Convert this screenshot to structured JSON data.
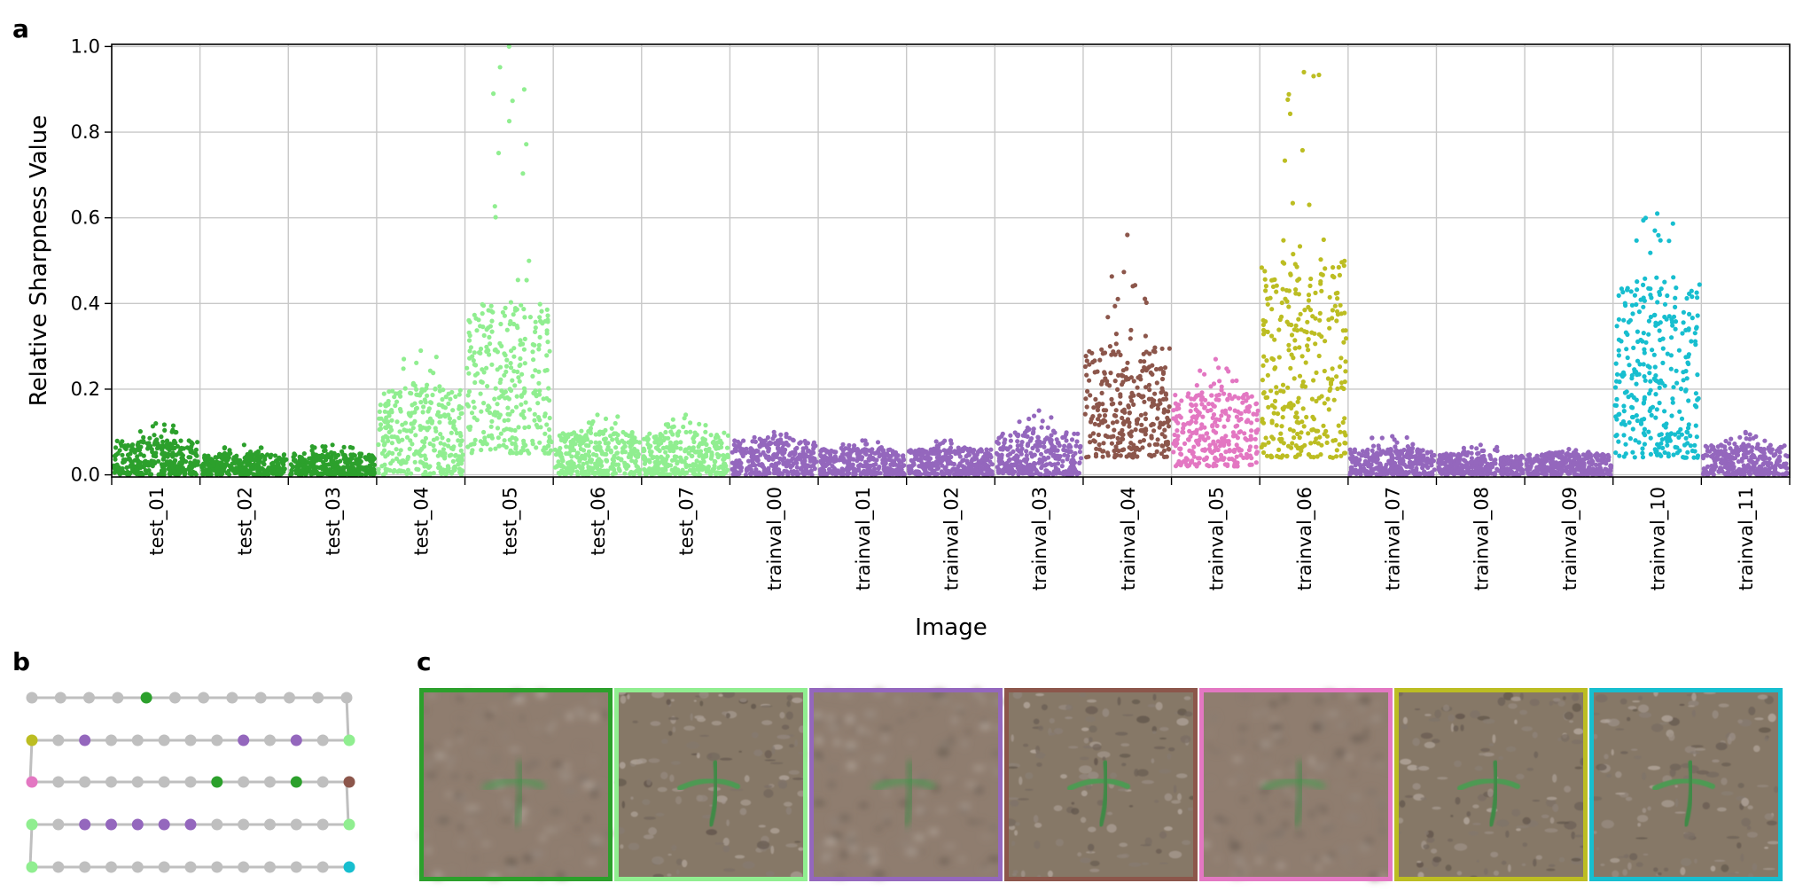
{
  "panels": {
    "a": "a",
    "b": "b",
    "c": "c"
  },
  "colors": {
    "dark_green": "#2ca02c",
    "light_green": "#90ee90",
    "purple": "#9467bd",
    "brown": "#8c564b",
    "pink": "#e377c2",
    "olive": "#bcbd22",
    "cyan": "#17becf",
    "grey": "#bfbfbf"
  },
  "chart_data": {
    "type": "scatter",
    "title": "",
    "xlabel": "Image",
    "ylabel": "Relative Sharpness Value",
    "ylim": [
      0.0,
      1.0
    ],
    "yticks": [
      "0.0",
      "0.2",
      "0.4",
      "0.6",
      "0.8",
      "1.0"
    ],
    "grid": true,
    "categories": [
      "test_01",
      "test_02",
      "test_03",
      "test_04",
      "test_05",
      "test_06",
      "test_07",
      "trainval_00",
      "trainval_01",
      "trainval_02",
      "trainval_03",
      "trainval_04",
      "trainval_05",
      "trainval_06",
      "trainval_07",
      "trainval_08",
      "trainval_09",
      "trainval_10",
      "trainval_11"
    ],
    "series": [
      {
        "category": "test_01",
        "color": "dark_green",
        "typical_range": [
          0.0,
          0.08
        ],
        "upper_envelope": 0.12
      },
      {
        "category": "test_02",
        "color": "dark_green",
        "typical_range": [
          0.0,
          0.05
        ],
        "upper_envelope": 0.07
      },
      {
        "category": "test_03",
        "color": "dark_green",
        "typical_range": [
          0.0,
          0.05
        ],
        "upper_envelope": 0.07
      },
      {
        "category": "test_04",
        "color": "light_green",
        "typical_range": [
          0.0,
          0.2
        ],
        "upper_envelope": 0.29
      },
      {
        "category": "test_05",
        "color": "light_green",
        "typical_range": [
          0.05,
          0.4
        ],
        "upper_envelope": 1.0
      },
      {
        "category": "test_06",
        "color": "light_green",
        "typical_range": [
          0.0,
          0.1
        ],
        "upper_envelope": 0.14
      },
      {
        "category": "test_07",
        "color": "light_green",
        "typical_range": [
          0.0,
          0.1
        ],
        "upper_envelope": 0.14
      },
      {
        "category": "trainval_00",
        "color": "purple",
        "typical_range": [
          0.0,
          0.08
        ],
        "upper_envelope": 0.1
      },
      {
        "category": "trainval_01",
        "color": "purple",
        "typical_range": [
          0.0,
          0.06
        ],
        "upper_envelope": 0.08
      },
      {
        "category": "trainval_02",
        "color": "purple",
        "typical_range": [
          0.0,
          0.06
        ],
        "upper_envelope": 0.08
      },
      {
        "category": "trainval_03",
        "color": "purple",
        "typical_range": [
          0.0,
          0.1
        ],
        "upper_envelope": 0.15
      },
      {
        "category": "trainval_04",
        "color": "brown",
        "typical_range": [
          0.04,
          0.3
        ],
        "upper_envelope": 0.56
      },
      {
        "category": "trainval_05",
        "color": "pink",
        "typical_range": [
          0.02,
          0.19
        ],
        "upper_envelope": 0.27
      },
      {
        "category": "trainval_06",
        "color": "olive",
        "typical_range": [
          0.04,
          0.5
        ],
        "upper_envelope": 0.94
      },
      {
        "category": "trainval_07",
        "color": "purple",
        "typical_range": [
          0.0,
          0.06
        ],
        "upper_envelope": 0.09
      },
      {
        "category": "trainval_08",
        "color": "purple",
        "typical_range": [
          0.0,
          0.05
        ],
        "upper_envelope": 0.07
      },
      {
        "category": "trainval_09",
        "color": "purple",
        "typical_range": [
          0.0,
          0.05
        ],
        "upper_envelope": 0.06
      },
      {
        "category": "trainval_10",
        "color": "cyan",
        "typical_range": [
          0.04,
          0.45
        ],
        "upper_envelope": 0.61
      },
      {
        "category": "trainval_11",
        "color": "purple",
        "typical_range": [
          0.0,
          0.07
        ],
        "upper_envelope": 0.1
      }
    ]
  },
  "path_diagram": {
    "rows": [
      [
        "grey",
        "grey",
        "grey",
        "grey",
        "dark_green",
        "grey",
        "grey",
        "grey",
        "grey",
        "grey",
        "grey",
        "grey"
      ],
      [
        "olive",
        "grey",
        "purple",
        "grey",
        "grey",
        "grey",
        "grey",
        "grey",
        "purple",
        "grey",
        "purple",
        "grey",
        "light_green"
      ],
      [
        "pink",
        "grey",
        "grey",
        "grey",
        "grey",
        "grey",
        "grey",
        "dark_green",
        "grey",
        "grey",
        "dark_green",
        "grey",
        "brown"
      ],
      [
        "light_green",
        "grey",
        "purple",
        "purple",
        "purple",
        "purple",
        "purple",
        "grey",
        "grey",
        "grey",
        "grey",
        "grey",
        "light_green"
      ],
      [
        "light_green",
        "grey",
        "grey",
        "grey",
        "grey",
        "grey",
        "grey",
        "grey",
        "grey",
        "grey",
        "grey",
        "grey",
        "cyan"
      ]
    ]
  },
  "sample_images": [
    {
      "border": "dark_green",
      "style": "blurred"
    },
    {
      "border": "light_green",
      "style": "sharp"
    },
    {
      "border": "purple",
      "style": "blurred"
    },
    {
      "border": "brown",
      "style": "sharp"
    },
    {
      "border": "pink",
      "style": "blurred"
    },
    {
      "border": "olive",
      "style": "sharp"
    },
    {
      "border": "cyan",
      "style": "sharp"
    }
  ]
}
